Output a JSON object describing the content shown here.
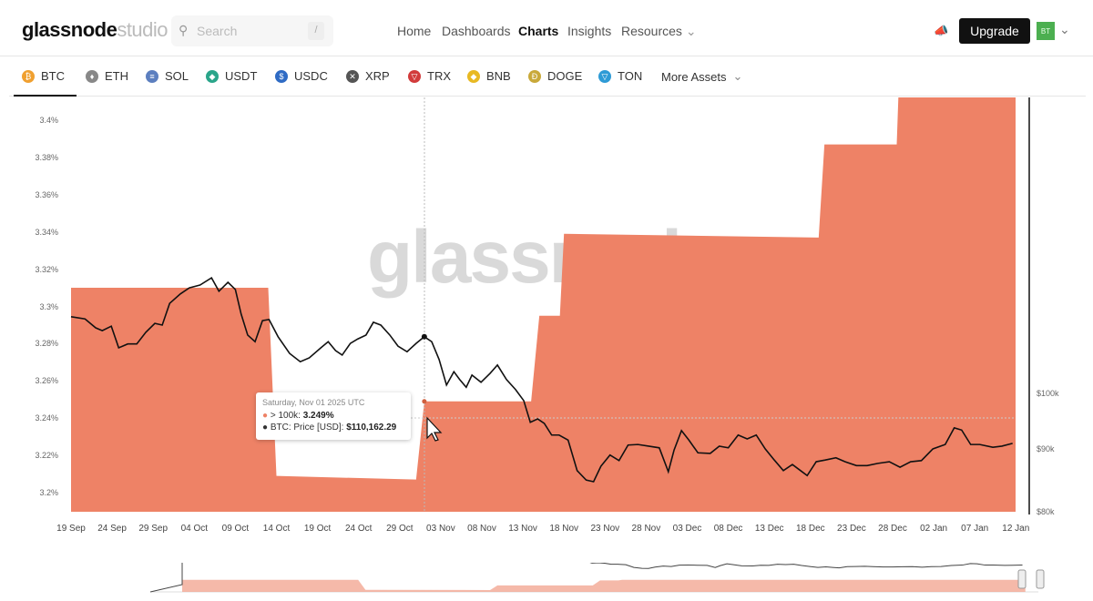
{
  "header": {
    "logo_main": "glassnode",
    "logo_sub": "studio",
    "search_placeholder": "Search",
    "search_shortcut": "/",
    "nav": [
      "Home",
      "Dashboards",
      "Charts",
      "Insights",
      "Resources"
    ],
    "active_nav": "Charts",
    "upgrade": "Upgrade",
    "avatar": "BT"
  },
  "assets": {
    "items": [
      {
        "label": "BTC",
        "color": "#f0a030"
      },
      {
        "label": "ETH",
        "color": "#888888"
      },
      {
        "label": "SOL",
        "color": "#5c7fbf"
      },
      {
        "label": "USDT",
        "color": "#2aa58a"
      },
      {
        "label": "USDC",
        "color": "#2f6bc4"
      },
      {
        "label": "XRP",
        "color": "#555555"
      },
      {
        "label": "TRX",
        "color": "#d23b3b"
      },
      {
        "label": "BNB",
        "color": "#e8b923"
      },
      {
        "label": "DOGE",
        "color": "#c9a93a"
      },
      {
        "label": "TON",
        "color": "#2e9bd6"
      }
    ],
    "more": "More Assets",
    "active": "BTC"
  },
  "watermark": "glassnode",
  "tooltip": {
    "date": "Saturday, Nov 01 2025 UTC",
    "series1_label": "> 100k:",
    "series1_value": "3.249%",
    "series2_label": "BTC: Price [USD]:",
    "series2_value": "$110,162.29"
  },
  "chart_data": {
    "type": "area+line",
    "series_colors": {
      "area": "#ee8266",
      "line": "#111111"
    },
    "x_ticks": [
      "19 Sep",
      "24 Sep",
      "29 Sep",
      "04 Oct",
      "09 Oct",
      "14 Oct",
      "19 Oct",
      "24 Oct",
      "29 Oct",
      "03 Nov",
      "08 Nov",
      "13 Nov",
      "18 Nov",
      "23 Nov",
      "28 Nov",
      "03 Dec",
      "08 Dec",
      "13 Dec",
      "18 Dec",
      "23 Dec",
      "28 Dec",
      "02 Jan",
      "07 Jan",
      "12 Jan"
    ],
    "x_tick_step_days": 5,
    "y_left_ticks": [
      "3.2%",
      "3.22%",
      "3.24%",
      "3.26%",
      "3.28%",
      "3.3%",
      "3.32%",
      "3.34%",
      "3.36%",
      "3.38%",
      "3.4%"
    ],
    "y_left_values": [
      3.2,
      3.22,
      3.24,
      3.26,
      3.28,
      3.3,
      3.32,
      3.34,
      3.36,
      3.38,
      3.4
    ],
    "y_left_range": [
      3.19,
      3.412
    ],
    "y_right_ticks": [
      "$80k",
      "$90k",
      "$100k"
    ],
    "y_right_values": [
      80,
      90,
      100
    ],
    "area_series": {
      "name": "> 100k (%)",
      "points": [
        [
          0,
          3.31
        ],
        [
          24,
          3.31
        ],
        [
          25,
          3.209
        ],
        [
          42,
          3.207
        ],
        [
          43,
          3.249
        ],
        [
          56,
          3.249
        ],
        [
          57,
          3.295
        ],
        [
          59.5,
          3.295
        ],
        [
          60,
          3.339
        ],
        [
          91,
          3.337
        ],
        [
          91.7,
          3.387
        ],
        [
          100.5,
          3.387
        ],
        [
          101,
          3.45
        ],
        [
          115,
          3.45
        ]
      ]
    },
    "line_series": {
      "name": "BTC: Price [USD] (k)",
      "points": [
        [
          0,
          113.8
        ],
        [
          1.7,
          113.4
        ],
        [
          3,
          111.8
        ],
        [
          3.8,
          111.3
        ],
        [
          4.9,
          112.1
        ],
        [
          5.8,
          108.2
        ],
        [
          6.9,
          108.9
        ],
        [
          8,
          108.9
        ],
        [
          9.1,
          111
        ],
        [
          10.2,
          112.6
        ],
        [
          11.1,
          112.3
        ],
        [
          12,
          116.2
        ],
        [
          13.3,
          117.9
        ],
        [
          14.4,
          119
        ],
        [
          15.7,
          119.5
        ],
        [
          17.1,
          120.8
        ],
        [
          18,
          118.4
        ],
        [
          19.1,
          120
        ],
        [
          20,
          118.7
        ],
        [
          20.7,
          114.3
        ],
        [
          21.5,
          110.5
        ],
        [
          22.4,
          109.3
        ],
        [
          23.3,
          113.1
        ],
        [
          24.1,
          113.3
        ],
        [
          25.2,
          110.2
        ],
        [
          26.6,
          107.2
        ],
        [
          27.9,
          105.7
        ],
        [
          29,
          106.4
        ],
        [
          30.4,
          108.2
        ],
        [
          31.3,
          109.3
        ],
        [
          32.2,
          107.7
        ],
        [
          33,
          106.9
        ],
        [
          34,
          109
        ],
        [
          34.9,
          109.8
        ],
        [
          35.9,
          110.5
        ],
        [
          36.8,
          112.8
        ],
        [
          37.7,
          112.3
        ],
        [
          38.8,
          110.5
        ],
        [
          39.8,
          108.5
        ],
        [
          40.9,
          107.5
        ],
        [
          42,
          109
        ],
        [
          43,
          110.2
        ],
        [
          43.9,
          109.3
        ],
        [
          44.8,
          106.1
        ],
        [
          45.7,
          101.5
        ],
        [
          46.6,
          103.9
        ],
        [
          47.3,
          102.5
        ],
        [
          48.1,
          101.1
        ],
        [
          48.8,
          103.3
        ],
        [
          49.9,
          102
        ],
        [
          51,
          103.6
        ],
        [
          51.9,
          105.1
        ],
        [
          53,
          102.5
        ],
        [
          54.1,
          100.7
        ],
        [
          55.1,
          98.7
        ],
        [
          55.9,
          94.8
        ],
        [
          56.8,
          95.4
        ],
        [
          57.6,
          94.6
        ],
        [
          58.5,
          92.5
        ],
        [
          59.4,
          92.5
        ],
        [
          60.5,
          91.6
        ],
        [
          61.6,
          86.1
        ],
        [
          62.7,
          84.4
        ],
        [
          63.6,
          84.1
        ],
        [
          64.5,
          86.9
        ],
        [
          65.6,
          88.9
        ],
        [
          66.7,
          87.9
        ],
        [
          67.8,
          90.7
        ],
        [
          69,
          90.8
        ],
        [
          70.3,
          90.5
        ],
        [
          71.6,
          90.2
        ],
        [
          72.7,
          85.9
        ],
        [
          73.4,
          89.8
        ],
        [
          74.3,
          93.3
        ],
        [
          75.2,
          91.6
        ],
        [
          76.3,
          89.3
        ],
        [
          77.8,
          89.2
        ],
        [
          78.9,
          90.5
        ],
        [
          80,
          90.2
        ],
        [
          81.2,
          92.5
        ],
        [
          82.3,
          91.8
        ],
        [
          83.4,
          92.5
        ],
        [
          84.5,
          90
        ],
        [
          85.6,
          88
        ],
        [
          86.7,
          86.1
        ],
        [
          87.8,
          87.2
        ],
        [
          88.7,
          86.2
        ],
        [
          89.6,
          85.2
        ],
        [
          90.7,
          87.7
        ],
        [
          91.8,
          88
        ],
        [
          93.1,
          88.4
        ],
        [
          94.2,
          87.7
        ],
        [
          95.6,
          87
        ],
        [
          96.9,
          87
        ],
        [
          98.2,
          87.4
        ],
        [
          99.6,
          87.7
        ],
        [
          100.9,
          86.7
        ],
        [
          102.2,
          87.7
        ],
        [
          103.5,
          87.9
        ],
        [
          104.9,
          90
        ],
        [
          106.4,
          90.8
        ],
        [
          107.5,
          93.8
        ],
        [
          108.4,
          93.4
        ],
        [
          109.5,
          90.8
        ],
        [
          110.6,
          90.8
        ],
        [
          112.2,
          90.3
        ],
        [
          113.3,
          90.5
        ],
        [
          114.6,
          91
        ]
      ]
    },
    "hover_day": 43
  }
}
